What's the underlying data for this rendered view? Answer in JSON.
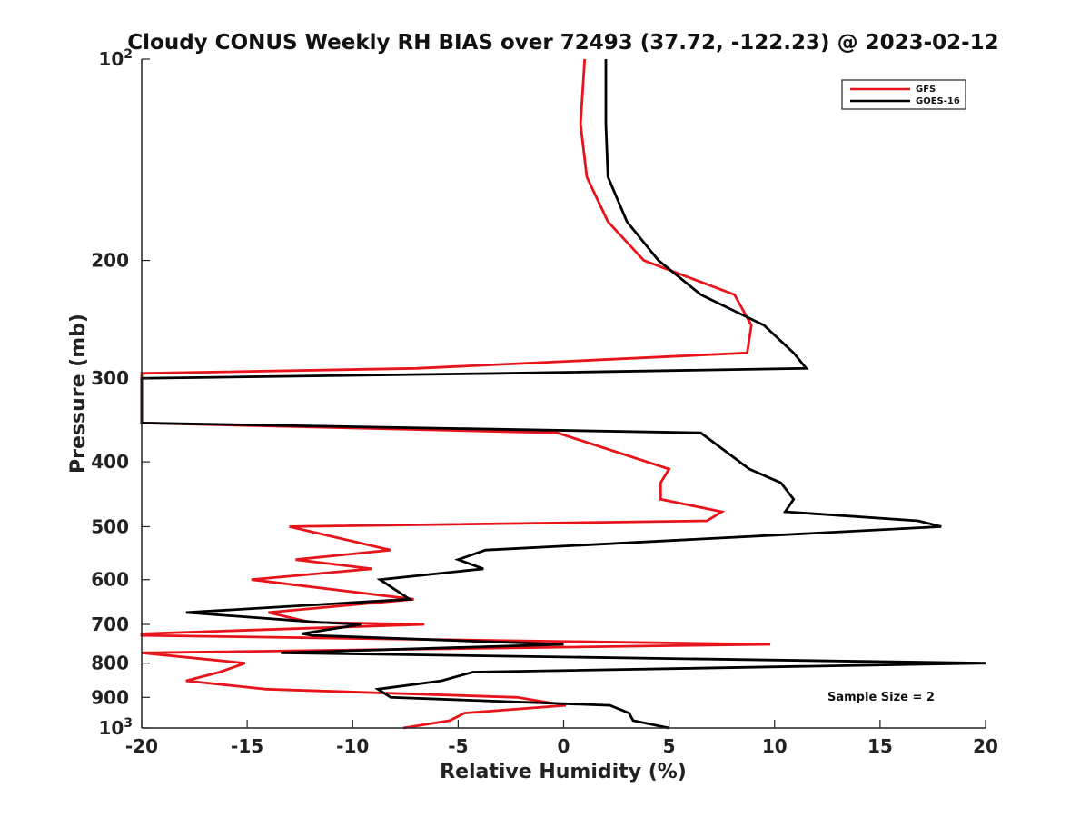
{
  "chart_data": {
    "type": "line",
    "title": "Cloudy CONUS Weekly RH BIAS over 72493 (37.72, -122.23) @ 2023-02-12",
    "xlabel": "Relative Humidity (%)",
    "ylabel": "Pressure (mb)",
    "xlim": [
      -20,
      20
    ],
    "ylim": [
      100,
      1000
    ],
    "y_scale": "log",
    "y_reversed": true,
    "grid": false,
    "legend_position": "top-right",
    "annotation": "Sample Size = 2",
    "x_ticks": [
      "-20",
      "-15",
      "-10",
      "-5",
      "0",
      "5",
      "10",
      "15",
      "20"
    ],
    "x_tick_values": [
      -20,
      -15,
      -10,
      -5,
      0,
      5,
      10,
      15,
      20
    ],
    "y_ticks": [
      {
        "value": 100,
        "base": "10",
        "exp": "2"
      },
      {
        "value": 200,
        "label": "200"
      },
      {
        "value": 300,
        "label": "300"
      },
      {
        "value": 400,
        "label": "400"
      },
      {
        "value": 500,
        "label": "500"
      },
      {
        "value": 600,
        "label": "600"
      },
      {
        "value": 700,
        "label": "700"
      },
      {
        "value": 800,
        "label": "800"
      },
      {
        "value": 900,
        "label": "900"
      },
      {
        "value": 1000,
        "base": "10",
        "exp": "3"
      }
    ],
    "series": [
      {
        "name": "GFS",
        "color": "#e8141c",
        "points": [
          [
            1.0,
            100
          ],
          [
            0.8,
            125
          ],
          [
            1.1,
            150
          ],
          [
            2.1,
            175
          ],
          [
            3.8,
            200
          ],
          [
            8.1,
            225
          ],
          [
            8.9,
            250
          ],
          [
            8.7,
            275
          ],
          [
            -7.0,
            290
          ],
          [
            -20,
            295
          ],
          [
            -20,
            350
          ],
          [
            -0.3,
            362
          ],
          [
            5.0,
            410
          ],
          [
            4.6,
            430
          ],
          [
            4.6,
            455
          ],
          [
            7.5,
            475
          ],
          [
            6.8,
            490
          ],
          [
            -13.0,
            500
          ],
          [
            -8.2,
            542
          ],
          [
            -12.7,
            560
          ],
          [
            -9.1,
            578
          ],
          [
            -14.8,
            600
          ],
          [
            -7.1,
            642
          ],
          [
            -14.0,
            672
          ],
          [
            -12.0,
            695
          ],
          [
            -6.6,
            700
          ],
          [
            -20,
            723
          ],
          [
            -20,
            727
          ],
          [
            9.8,
            750
          ],
          [
            -20,
            772
          ],
          [
            -15.1,
            800
          ],
          [
            -16.3,
            825
          ],
          [
            -17.9,
            850
          ],
          [
            -14.1,
            875
          ],
          [
            -2.2,
            900
          ],
          [
            0.1,
            925
          ],
          [
            -4.7,
            950
          ],
          [
            -5.4,
            975
          ],
          [
            -7.6,
            1000
          ]
        ]
      },
      {
        "name": "GOES-16",
        "color": "#000000",
        "points": [
          [
            2.0,
            100
          ],
          [
            2.0,
            125
          ],
          [
            2.1,
            150
          ],
          [
            3.0,
            175
          ],
          [
            4.5,
            200
          ],
          [
            6.5,
            225
          ],
          [
            9.5,
            250
          ],
          [
            10.9,
            275
          ],
          [
            11.5,
            290
          ],
          [
            -3.0,
            295
          ],
          [
            -20,
            300
          ],
          [
            -20,
            350
          ],
          [
            6.5,
            362
          ],
          [
            8.8,
            410
          ],
          [
            10.3,
            430
          ],
          [
            10.9,
            455
          ],
          [
            10.5,
            475
          ],
          [
            16.8,
            490
          ],
          [
            17.9,
            500
          ],
          [
            -3.7,
            542
          ],
          [
            -5.0,
            560
          ],
          [
            -3.8,
            578
          ],
          [
            -8.7,
            600
          ],
          [
            -7.3,
            642
          ],
          [
            -17.9,
            672
          ],
          [
            -11.6,
            695
          ],
          [
            -9.6,
            700
          ],
          [
            -12.4,
            723
          ],
          [
            -11.9,
            727
          ],
          [
            0.0,
            750
          ],
          [
            -13.4,
            772
          ],
          [
            20.0,
            800
          ],
          [
            -4.3,
            825
          ],
          [
            -5.8,
            850
          ],
          [
            -8.8,
            875
          ],
          [
            -8.2,
            900
          ],
          [
            2.2,
            925
          ],
          [
            3.1,
            950
          ],
          [
            3.3,
            975
          ],
          [
            5.0,
            1000
          ]
        ]
      }
    ]
  }
}
